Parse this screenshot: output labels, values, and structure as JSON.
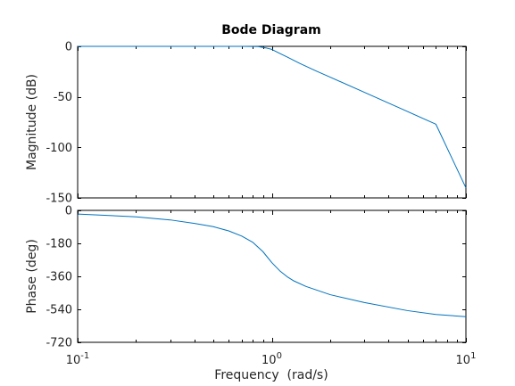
{
  "chart_data": {
    "type": "line",
    "title": "Bode Diagram",
    "xlabel": "Frequency  (rad/s)",
    "xscale": "log",
    "xlim": [
      0.1,
      10
    ],
    "x_ticks": [
      {
        "value": 0.1,
        "base": "10",
        "exp": "-1"
      },
      {
        "value": 1,
        "base": "10",
        "exp": "0"
      },
      {
        "value": 10,
        "base": "10",
        "exp": "1"
      }
    ],
    "line_color": "#0072BD",
    "panels": [
      {
        "name": "magnitude",
        "ylabel": "Magnitude (dB)",
        "ylim": [
          -150,
          0
        ],
        "y_ticks": [
          0,
          -50,
          -100,
          -150
        ],
        "series": [
          {
            "x": [
              0.1,
              0.2,
              0.3,
              0.5,
              0.7,
              0.85,
              0.93,
              1.0,
              1.1,
              1.2,
              1.4,
              1.7,
              2,
              3,
              5,
              7,
              10
            ],
            "values": [
              0,
              0,
              0,
              0,
              0,
              -0.2,
              -1.5,
              -3.0,
              -7.0,
              -10.5,
              -17.0,
              -24.5,
              -30.5,
              -45.5,
              -64.5,
              -77.0,
              -140.0
            ]
          }
        ]
      },
      {
        "name": "phase",
        "ylabel": "Phase (deg)",
        "ylim": [
          -720,
          0
        ],
        "y_ticks": [
          0,
          -180,
          -360,
          -540,
          -720
        ],
        "series": [
          {
            "x": [
              0.1,
              0.2,
              0.3,
              0.4,
              0.5,
              0.6,
              0.7,
              0.8,
              0.9,
              1.0,
              1.1,
              1.2,
              1.3,
              1.5,
              2,
              3,
              5,
              7,
              10
            ],
            "values": [
              -20,
              -35,
              -52,
              -71,
              -89,
              -112,
              -140,
              -175,
              -225,
              -285,
              -330,
              -362,
              -385,
              -415,
              -460,
              -503,
              -547,
              -568,
              -580
            ]
          }
        ]
      }
    ]
  }
}
